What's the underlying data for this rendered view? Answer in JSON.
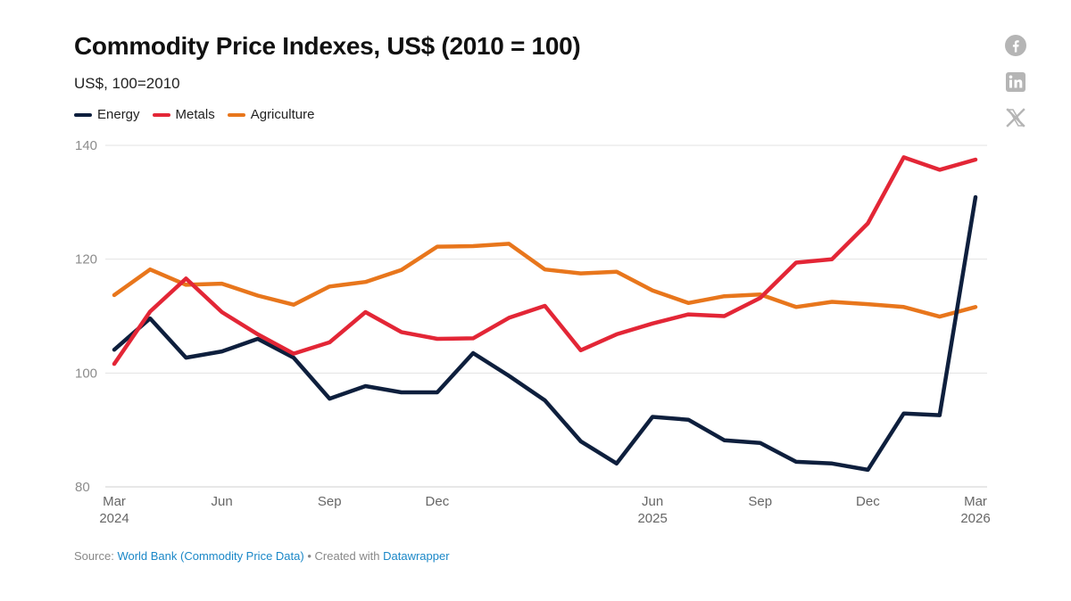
{
  "header": {
    "title": "Commodity Price Indexes, US$ (2010 = 100)",
    "subtitle": "US$, 100=2010"
  },
  "legend": [
    {
      "label": "Energy",
      "color": "#0e1f3d"
    },
    {
      "label": "Metals",
      "color": "#e32636"
    },
    {
      "label": "Agriculture",
      "color": "#e8761c"
    }
  ],
  "share_icons": [
    "facebook-icon",
    "linkedin-icon",
    "x-icon"
  ],
  "footer": {
    "source_label": "Source:",
    "source_link": "World Bank (Commodity Price Data)",
    "separator": "•",
    "created_label": "Created with",
    "created_link": "Datawrapper"
  },
  "chart_data": {
    "type": "line",
    "x": [
      "2024-03",
      "2024-04",
      "2024-05",
      "2024-06",
      "2024-07",
      "2024-08",
      "2024-09",
      "2024-10",
      "2024-11",
      "2024-12",
      "2025-01",
      "2025-02",
      "2025-03",
      "2025-04",
      "2025-05",
      "2025-06",
      "2025-07",
      "2025-08",
      "2025-09",
      "2025-10",
      "2025-11",
      "2025-12",
      "2026-01",
      "2026-02",
      "2026-03"
    ],
    "x_ticks": [
      {
        "x": "2024-03",
        "label": "Mar",
        "year": "2024"
      },
      {
        "x": "2024-06",
        "label": "Jun",
        "year": ""
      },
      {
        "x": "2024-09",
        "label": "Sep",
        "year": ""
      },
      {
        "x": "2024-12",
        "label": "Dec",
        "year": ""
      },
      {
        "x": "2025-06",
        "label": "Jun",
        "year": "2025"
      },
      {
        "x": "2025-09",
        "label": "Sep",
        "year": ""
      },
      {
        "x": "2025-12",
        "label": "Dec",
        "year": ""
      },
      {
        "x": "2026-03",
        "label": "Mar",
        "year": "2026"
      }
    ],
    "y_ticks": [
      80,
      100,
      120,
      140
    ],
    "ylim": [
      80,
      140
    ],
    "grid": true,
    "legend_position": "top-left",
    "series": [
      {
        "name": "Energy",
        "color": "#0e1f3d",
        "values": [
          104.1,
          109.6,
          102.7,
          103.8,
          106.0,
          102.7,
          95.5,
          97.7,
          96.6,
          96.6,
          103.5,
          99.5,
          95.2,
          88.0,
          84.1,
          92.3,
          91.8,
          88.2,
          87.7,
          84.4,
          84.1,
          83.0,
          92.9,
          92.6,
          130.9
        ]
      },
      {
        "name": "Metals",
        "color": "#e32636",
        "values": [
          101.6,
          110.8,
          116.6,
          110.7,
          106.8,
          103.4,
          105.4,
          110.7,
          107.2,
          106.0,
          106.1,
          109.7,
          111.8,
          104.0,
          106.8,
          108.7,
          110.3,
          110.0,
          113.2,
          119.4,
          120.0,
          126.3,
          137.9,
          135.7,
          137.5
        ]
      },
      {
        "name": "Agriculture",
        "color": "#e8761c",
        "values": [
          113.7,
          118.2,
          115.5,
          115.7,
          113.6,
          112.0,
          115.2,
          116.0,
          118.1,
          122.2,
          122.3,
          122.7,
          118.2,
          117.5,
          117.8,
          114.5,
          112.3,
          113.5,
          113.8,
          111.6,
          112.5,
          112.1,
          111.6,
          109.9,
          111.6
        ]
      }
    ]
  }
}
